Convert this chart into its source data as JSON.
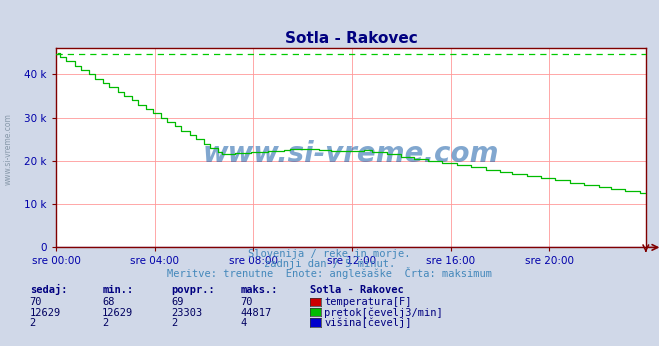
{
  "title": "Sotla - Rakovec",
  "title_color": "#000080",
  "bg_color": "#d0d8e8",
  "plot_bg_color": "#ffffff",
  "grid_color": "#ff9999",
  "axis_color": "#800000",
  "tick_color": "#0000aa",
  "watermark_text": "www.si-vreme.com",
  "watermark_color": "#1a5fa8",
  "watermark_alpha": 0.55,
  "subtitle1": "Slovenija / reke in morje.",
  "subtitle2": "zadnji dan / 5 minut.",
  "subtitle3": "Meritve: trenutne  Enote: anglešaške  Črta: maksimum",
  "subtitle_color": "#4488bb",
  "legend_title": "Sotla - Rakovec",
  "legend_title_color": "#000080",
  "legend_entries": [
    {
      "label": "temperatura[F]",
      "color": "#cc0000"
    },
    {
      "label": "pretok[čevelj3/min]",
      "color": "#00bb00"
    },
    {
      "label": "višina[čevelj]",
      "color": "#0000cc"
    }
  ],
  "table_headers": [
    "sedaj:",
    "min.:",
    "povpr.:",
    "maks.:"
  ],
  "table_data": [
    [
      "70",
      "68",
      "69",
      "70"
    ],
    [
      "12629",
      "12629",
      "23303",
      "44817"
    ],
    [
      "2",
      "2",
      "2",
      "4"
    ]
  ],
  "table_color": "#000080",
  "table_values_color": "#000060",
  "ylim": [
    0,
    46000
  ],
  "ytick_values": [
    0,
    10000,
    20000,
    30000,
    40000
  ],
  "ytick_labels": [
    "0",
    "10 k",
    "20 k",
    "30 k",
    "40 k"
  ],
  "n_points": 288,
  "max_flow": 44817,
  "max_line_color": "#00cc00",
  "flow_color": "#00bb00",
  "temp_color": "#cc0000",
  "height_color": "#0000cc",
  "left_label": "www.si-vreme.com",
  "left_label_color": "#8899aa",
  "xtick_labels": [
    "sre 00:00",
    "sre 04:00",
    "sre 08:00",
    "sre 12:00",
    "sre 16:00",
    "sre 20:00"
  ]
}
